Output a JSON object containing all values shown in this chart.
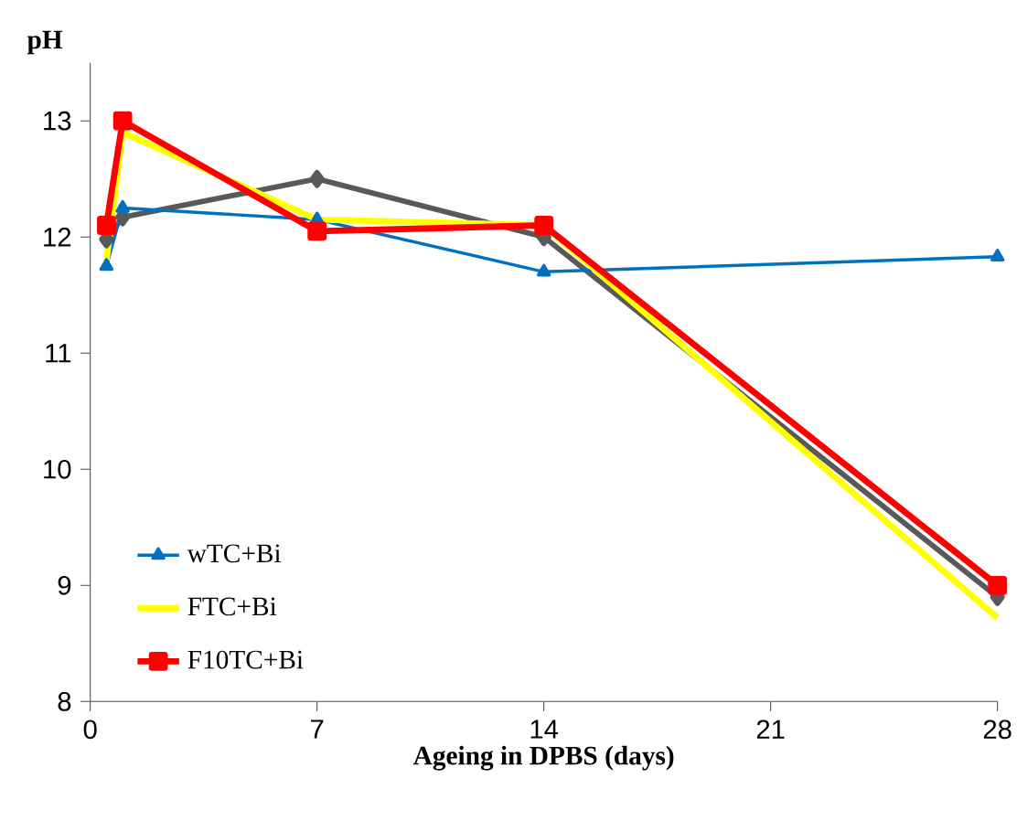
{
  "chart_data": {
    "type": "line",
    "xlabel": "Ageing in DPBS (days)",
    "ylabel": "pH",
    "x": [
      0.5,
      1,
      7,
      14,
      28
    ],
    "xlim": [
      0,
      28
    ],
    "xticks": [
      0,
      7,
      14,
      21,
      28
    ],
    "ylim": [
      8,
      13.5
    ],
    "yticks": [
      8,
      9,
      10,
      11,
      12,
      13
    ],
    "grid": false,
    "legend": "bottom left",
    "line_style": "solid",
    "series": [
      {
        "color": "#595959",
        "marker": "diamond",
        "values": [
          11.98,
          12.17,
          12.5,
          12.0,
          8.9
        ]
      },
      {
        "name": "wTC+Bi",
        "color": "#0070c0",
        "marker": "triangle",
        "values": [
          11.75,
          12.25,
          12.15,
          11.7,
          11.83
        ]
      },
      {
        "name": "FTC+Bi",
        "color": "#ffff00",
        "marker": "none",
        "values": [
          11.8,
          12.9,
          12.15,
          12.1,
          8.72
        ]
      },
      {
        "name": "F10TC+Bi",
        "color": "#ff0000",
        "marker": "square",
        "values": [
          12.1,
          13.0,
          12.05,
          12.1,
          9.0
        ]
      }
    ]
  }
}
